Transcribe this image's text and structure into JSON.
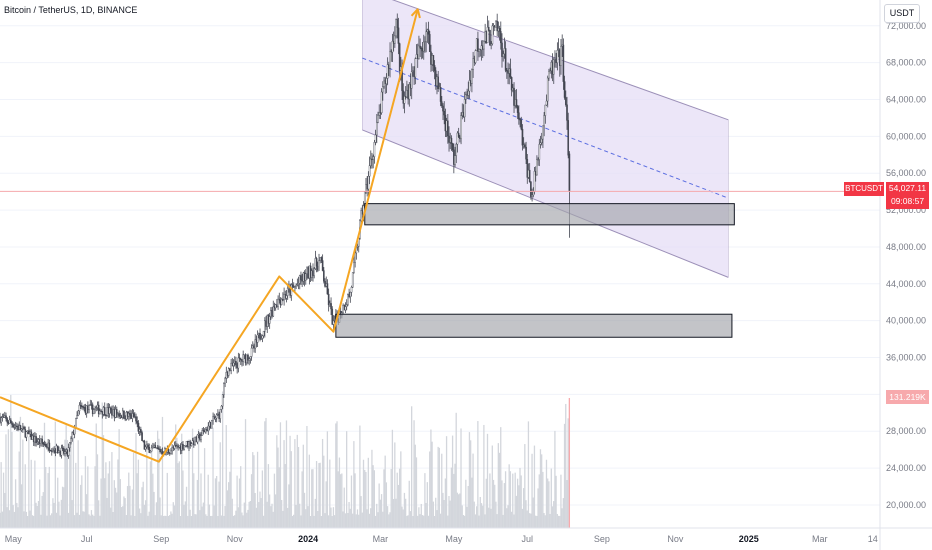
{
  "header": {
    "title": "Bitcoin / TetherUS, 1D, BINANCE",
    "currency": "USDT"
  },
  "price_label": {
    "symbol": "BTCUSDT",
    "price": "54,027.11",
    "countdown": "09:08:57"
  },
  "volume_label": "131.219K",
  "colors": {
    "candle": "#434651",
    "volume": "#d3d6dc",
    "volume_last": "#f7a9ac",
    "zigzag": "#f5a623",
    "channel_fill": "#e6def6",
    "channel_line": "#9c90b8",
    "midline": "#5b6ee1",
    "zone_fill": "#a3a5aa",
    "price_line": "#f5a8ac",
    "axis_text": "#787b86",
    "red": "#f23645"
  },
  "chart_data": {
    "type": "candlestick",
    "symbol": "BTCUSDT",
    "timeframe": "1D",
    "exchange": "BINANCE",
    "x_axis": {
      "tick_labels": [
        "May",
        "Jul",
        "Sep",
        "Nov",
        "2024",
        "Mar",
        "May",
        "Jul",
        "Sep",
        "Nov",
        "2025",
        "Mar",
        "14"
      ],
      "tick_dates": [
        "2023-05-01",
        "2023-07-01",
        "2023-09-01",
        "2023-11-01",
        "2024-01-01",
        "2024-03-01",
        "2024-05-01",
        "2024-07-01",
        "2024-09-01",
        "2024-11-01",
        "2025-01-01",
        "2025-03-01",
        "2025-04-14"
      ],
      "range": [
        "2023-04-20",
        "2025-04-20"
      ]
    },
    "y_axis": {
      "label": "USDT",
      "tick_values": [
        20000,
        24000,
        28000,
        32000,
        36000,
        40000,
        44000,
        48000,
        52000,
        56000,
        60000,
        64000,
        68000,
        72000
      ],
      "tick_labels": [
        "20,000.00",
        "24,000.00",
        "28,000.00",
        "32,000.00",
        "36,000.00",
        "40,000.00",
        "44,000.00",
        "48,000.00",
        "52,000.00",
        "56,000.00",
        "60,000.00",
        "64,000.00",
        "68,000.00",
        "72,000.00"
      ],
      "range": [
        17500,
        74800
      ]
    },
    "price_path": [
      {
        "date": "2023-04-20",
        "close": 29500
      },
      {
        "date": "2023-05-01",
        "close": 28800
      },
      {
        "date": "2023-05-20",
        "close": 27000
      },
      {
        "date": "2023-06-15",
        "close": 25500
      },
      {
        "date": "2023-06-25",
        "close": 30500
      },
      {
        "date": "2023-07-15",
        "close": 30300
      },
      {
        "date": "2023-08-10",
        "close": 29500
      },
      {
        "date": "2023-08-18",
        "close": 26200
      },
      {
        "date": "2023-09-05",
        "close": 25800
      },
      {
        "date": "2023-09-30",
        "close": 27000
      },
      {
        "date": "2023-10-20",
        "close": 30000
      },
      {
        "date": "2023-10-25",
        "close": 34500
      },
      {
        "date": "2023-11-15",
        "close": 36500
      },
      {
        "date": "2023-12-05",
        "close": 42000
      },
      {
        "date": "2023-12-20",
        "close": 43500
      },
      {
        "date": "2024-01-11",
        "close": 46500
      },
      {
        "date": "2024-01-22",
        "close": 39500
      },
      {
        "date": "2024-02-05",
        "close": 43000
      },
      {
        "date": "2024-02-15",
        "close": 52000
      },
      {
        "date": "2024-03-05",
        "close": 66000
      },
      {
        "date": "2024-03-14",
        "close": 72500
      },
      {
        "date": "2024-03-20",
        "close": 63500
      },
      {
        "date": "2024-04-08",
        "close": 71500
      },
      {
        "date": "2024-04-20",
        "close": 64000
      },
      {
        "date": "2024-05-01",
        "close": 57500
      },
      {
        "date": "2024-05-20",
        "close": 70000
      },
      {
        "date": "2024-06-07",
        "close": 71500
      },
      {
        "date": "2024-06-25",
        "close": 61000
      },
      {
        "date": "2024-07-05",
        "close": 53500
      },
      {
        "date": "2024-07-20",
        "close": 67000
      },
      {
        "date": "2024-07-30",
        "close": 69000
      },
      {
        "date": "2024-08-03",
        "close": 61000
      },
      {
        "date": "2024-08-05",
        "close": 54027
      }
    ],
    "current_price": 54027.11,
    "volume_scale_value": 131219,
    "drawings": {
      "zigzag": [
        {
          "date": "2023-04-20",
          "price": 31700
        },
        {
          "date": "2023-08-30",
          "price": 24700
        },
        {
          "date": "2023-12-08",
          "price": 44800
        },
        {
          "date": "2024-01-22",
          "price": 38800
        },
        {
          "date": "2024-04-01",
          "price": 73800
        }
      ],
      "parallel_channel": {
        "upper": [
          {
            "date": "2024-02-15",
            "price": 76000
          },
          {
            "date": "2024-12-15",
            "price": 61800
          }
        ],
        "lower": [
          {
            "date": "2024-02-15",
            "price": 60700
          },
          {
            "date": "2024-12-15",
            "price": 44700
          }
        ],
        "mid": [
          {
            "date": "2024-02-15",
            "price": 68500
          },
          {
            "date": "2024-12-15",
            "price": 53300
          }
        ]
      },
      "zones": [
        {
          "from": "2024-02-17",
          "to": "2024-12-20",
          "top": 52700,
          "bottom": 50400
        },
        {
          "from": "2024-01-24",
          "to": "2024-12-18",
          "top": 40700,
          "bottom": 38200
        }
      ]
    }
  }
}
